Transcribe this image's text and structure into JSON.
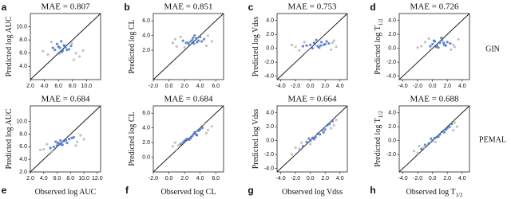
{
  "row_labels": [
    "GIN",
    "PEMAL"
  ],
  "chart_data": [
    {
      "type": "scatter",
      "panel_label": "a",
      "title": "MAE = 0.807",
      "y_label": "Predicted log AUC",
      "xlim": [
        2,
        12
      ],
      "ylim": [
        2,
        12
      ],
      "xticks": [
        {
          "value": 2,
          "label": "2.0"
        },
        {
          "value": 4,
          "label": "4.0"
        },
        {
          "value": 6,
          "label": "6.0"
        },
        {
          "value": 8,
          "label": "8.0"
        },
        {
          "value": 10,
          "label": "10.0"
        }
      ],
      "yticks": [
        {
          "value": 4,
          "label": "4.0"
        },
        {
          "value": 6,
          "label": "6.0"
        },
        {
          "value": 8,
          "label": "8.0"
        },
        {
          "value": 10,
          "label": "10.0"
        }
      ],
      "series": [
        {
          "color": "#4a74c9",
          "x": [
            5.5,
            6,
            6.2,
            6.5,
            6.8,
            7,
            7.2,
            5.8,
            6.4,
            7.5,
            6.1,
            6.9,
            5.2,
            7.8,
            6.6
          ],
          "values": [
            6.5,
            7,
            6.8,
            6.2,
            7.2,
            6.9,
            6.5,
            7.4,
            7.8,
            6.6,
            6,
            7,
            6.8,
            7.1,
            6.4
          ]
        },
        {
          "color": "#b8b8b8",
          "x": [
            4.5,
            8.5,
            9,
            7.9,
            3.8,
            8.2,
            5,
            9.5
          ],
          "values": [
            5.8,
            6,
            5.5,
            7.5,
            6.3,
            5,
            7.7,
            6.4
          ]
        }
      ]
    },
    {
      "type": "scatter",
      "panel_label": "b",
      "title": "MAE = 0.851",
      "y_label": "Predicted log CL",
      "xlim": [
        -2,
        7
      ],
      "ylim": [
        -2,
        7
      ],
      "xticks": [
        {
          "value": -2,
          "label": "-2.0"
        },
        {
          "value": 0,
          "label": "0.0"
        },
        {
          "value": 2,
          "label": "2.0"
        },
        {
          "value": 4,
          "label": "4.0"
        },
        {
          "value": 6,
          "label": "6.0"
        }
      ],
      "yticks": [
        {
          "value": 2,
          "label": "2.0"
        },
        {
          "value": 4,
          "label": "4.0"
        },
        {
          "value": 6,
          "label": "6.0"
        }
      ],
      "series": [
        {
          "color": "#4a74c9",
          "x": [
            2.5,
            3,
            3.2,
            3.5,
            2.8,
            3.8,
            4,
            2.2,
            3.3,
            4.5,
            2.6,
            3.6,
            1.8,
            3.1,
            4.2
          ],
          "values": [
            3,
            3.4,
            2.9,
            3.6,
            3.2,
            3.3,
            3.8,
            3,
            4,
            3.5,
            2.7,
            3.1,
            3.3,
            3.7,
            3.2
          ]
        },
        {
          "color": "#b8b8b8",
          "x": [
            1,
            0.5,
            5.5,
            4.8,
            1.5,
            2,
            5,
            0.8
          ],
          "values": [
            2.5,
            3,
            3.2,
            2.6,
            3.8,
            2.4,
            4,
            3.5
          ]
        }
      ]
    },
    {
      "type": "scatter",
      "panel_label": "c",
      "title": "MAE = 0.753",
      "y_label": "Predicted log Vdss",
      "xlim": [
        -4.5,
        5
      ],
      "ylim": [
        -4.5,
        5
      ],
      "xticks": [
        {
          "value": -4,
          "label": "-4.0"
        },
        {
          "value": -2,
          "label": "-2.0"
        },
        {
          "value": 0,
          "label": "0.0"
        },
        {
          "value": 2,
          "label": "2.0"
        },
        {
          "value": 4,
          "label": "4.0"
        }
      ],
      "yticks": [
        {
          "value": -4,
          "label": "-4.0"
        },
        {
          "value": -2,
          "label": "-2.0"
        },
        {
          "value": 0,
          "label": "0.0"
        },
        {
          "value": 2,
          "label": "2.0"
        },
        {
          "value": 4,
          "label": "4.0"
        }
      ],
      "series": [
        {
          "color": "#4a74c9",
          "x": [
            0,
            0.5,
            1,
            1.5,
            2,
            -0.5,
            0.8,
            1.2,
            2.5,
            0.3,
            1.8,
            -1,
            2.2,
            0.6,
            1.4
          ],
          "values": [
            0.5,
            0.8,
            0.3,
            0.9,
            0.6,
            0.4,
            1.2,
            0.1,
            0.7,
            0,
            0.5,
            0.3,
            1,
            0.6,
            0.4
          ]
        },
        {
          "color": "#b8b8b8",
          "x": [
            -2,
            -1.5,
            3,
            3.5,
            -2.5,
            2.8,
            -0.8,
            3.2
          ],
          "values": [
            0.2,
            -0.3,
            0.8,
            0.2,
            0.5,
            -0.2,
            0.9,
            1.1
          ]
        }
      ]
    },
    {
      "type": "scatter",
      "panel_label": "d",
      "title": "MAE = 0.726",
      "y_label": "Predicted log T",
      "y_label_sub": "1/2",
      "xlim": [
        -4.5,
        5
      ],
      "ylim": [
        -4.5,
        5
      ],
      "xticks": [
        {
          "value": -4,
          "label": "-4.0"
        },
        {
          "value": -2,
          "label": "-2.0"
        },
        {
          "value": 0,
          "label": "0.0"
        },
        {
          "value": 2,
          "label": "2.0"
        },
        {
          "value": 4,
          "label": "4.0"
        }
      ],
      "yticks": [
        {
          "value": -4,
          "label": "-4.0"
        },
        {
          "value": -2,
          "label": "-2.0"
        },
        {
          "value": 0,
          "label": "0.0"
        },
        {
          "value": 2,
          "label": "2.0"
        },
        {
          "value": 4,
          "label": "4.0"
        }
      ],
      "series": [
        {
          "color": "#4a74c9",
          "x": [
            0,
            0.3,
            0.6,
            1,
            1.3,
            1.6,
            2,
            0.8,
            -0.3,
            1.2,
            2.4,
            0.5,
            1.8,
            0.2,
            1.5
          ],
          "values": [
            0.6,
            1,
            0.4,
            0.8,
            1.2,
            0.5,
            0.9,
            0.1,
            0.3,
            1.5,
            0.7,
            0.2,
            0.4,
            1.1,
            0.8
          ]
        },
        {
          "color": "#b8b8b8",
          "x": [
            -1.5,
            -1,
            2.8,
            3.5,
            -2,
            3,
            -0.5,
            2.5
          ],
          "values": [
            0.3,
            0.9,
            0.5,
            1.3,
            0.1,
            0.2,
            1.4,
            -0.2
          ]
        }
      ]
    },
    {
      "type": "scatter",
      "panel_label": "e",
      "title": "MAE = 0.684",
      "y_label": "Predicted log AUC",
      "x_label": "Observed log AUC",
      "xlim": [
        2,
        12.5
      ],
      "ylim": [
        2,
        12.5
      ],
      "xticks": [
        {
          "value": 2,
          "label": "2.0"
        },
        {
          "value": 4,
          "label": "4.0"
        },
        {
          "value": 6,
          "label": "6.0"
        },
        {
          "value": 8,
          "label": "8.0"
        },
        {
          "value": 10,
          "label": "10.0"
        },
        {
          "value": 12,
          "label": "12.0"
        }
      ],
      "yticks": [
        {
          "value": 2,
          "label": "2.0"
        },
        {
          "value": 4,
          "label": "4.0"
        },
        {
          "value": 6,
          "label": "6.0"
        },
        {
          "value": 8,
          "label": "8.0"
        },
        {
          "value": 10,
          "label": "10.0"
        }
      ],
      "series": [
        {
          "color": "#4a74c9",
          "x": [
            5,
            5.5,
            6,
            6.3,
            6.6,
            7,
            7.3,
            7.8,
            8.2,
            6.1,
            6.8,
            5.8,
            7.5,
            8.5,
            6.5
          ],
          "values": [
            5.8,
            6,
            6.2,
            6.5,
            6.4,
            6.9,
            7,
            7.2,
            7.4,
            6.6,
            6.3,
            6.8,
            6.6,
            7.5,
            7
          ]
        },
        {
          "color": "#b8b8b8",
          "x": [
            4,
            4.5,
            9,
            9.5,
            3.5,
            8.8,
            10,
            5.2
          ],
          "values": [
            5.6,
            6.4,
            6.8,
            7.8,
            5.5,
            6.2,
            7.2,
            5.2
          ]
        }
      ]
    },
    {
      "type": "scatter",
      "panel_label": "f",
      "title": "MAE = 0.684",
      "y_label": "Predicted log CL",
      "x_label": "Observed log CL",
      "xlim": [
        -2,
        7
      ],
      "ylim": [
        -2,
        7
      ],
      "xticks": [
        {
          "value": -2,
          "label": "-2.0"
        },
        {
          "value": 0,
          "label": "0.0"
        },
        {
          "value": 2,
          "label": "2.0"
        },
        {
          "value": 4,
          "label": "4.0"
        },
        {
          "value": 6,
          "label": "6.0"
        }
      ],
      "yticks": [
        {
          "value": 0,
          "label": "0.0"
        },
        {
          "value": 2,
          "label": "2.0"
        },
        {
          "value": 4,
          "label": "4.0"
        },
        {
          "value": 6,
          "label": "6.0"
        }
      ],
      "series": [
        {
          "color": "#4a74c9",
          "x": [
            1.5,
            2,
            2.3,
            2.6,
            3,
            3.2,
            3.5,
            3.8,
            4,
            2.8,
            3.3,
            4.3,
            2.1,
            3.6,
            1.8
          ],
          "values": [
            1.8,
            2.2,
            2.5,
            2.4,
            2.9,
            3.2,
            3.1,
            3.6,
            3.8,
            2.6,
            3.4,
            4,
            2.3,
            3,
            2
          ]
        },
        {
          "color": "#b8b8b8",
          "x": [
            0.5,
            1,
            5,
            5.5,
            0.8,
            4.8,
            1.2,
            4.5
          ],
          "values": [
            1.5,
            1,
            3.7,
            4.2,
            2,
            3.3,
            1.6,
            4.5
          ]
        }
      ]
    },
    {
      "type": "scatter",
      "panel_label": "g",
      "title": "MAE = 0.664",
      "y_label": "Predicted log Vdss",
      "x_label": "Observed log Vdss",
      "xlim": [
        -4.5,
        5
      ],
      "ylim": [
        -4.5,
        5
      ],
      "xticks": [
        {
          "value": -4,
          "label": "-4.0"
        },
        {
          "value": -2,
          "label": "-2.0"
        },
        {
          "value": 0,
          "label": "0.0"
        },
        {
          "value": 2,
          "label": "2.0"
        },
        {
          "value": 4,
          "label": "4.0"
        }
      ],
      "yticks": [
        {
          "value": -4,
          "label": "-4.0"
        },
        {
          "value": -2,
          "label": "-2.0"
        },
        {
          "value": 0,
          "label": "0.0"
        },
        {
          "value": 2,
          "label": "2.0"
        },
        {
          "value": 4,
          "label": "4.0"
        }
      ],
      "series": [
        {
          "color": "#4a74c9",
          "x": [
            -1,
            -0.5,
            0,
            0.3,
            0.7,
            1,
            1.3,
            1.6,
            2,
            2.3,
            2.6,
            0.5,
            1.8,
            -0.2,
            3
          ],
          "values": [
            -0.8,
            -0.2,
            0,
            0.4,
            0.5,
            1,
            0.9,
            1.5,
            1.6,
            2.2,
            2.4,
            0.2,
            1.2,
            0.3,
            2.8
          ]
        },
        {
          "color": "#b8b8b8",
          "x": [
            -2.5,
            -2,
            -1.5,
            3.5,
            3.2,
            -1.2,
            2.8,
            0
          ],
          "values": [
            -2,
            -1,
            -1.2,
            3,
            2.2,
            -0.3,
            1.8,
            -0.5
          ]
        }
      ]
    },
    {
      "type": "scatter",
      "panel_label": "h",
      "title": "MAE = 0.688",
      "y_label": "Predicted log T",
      "y_label_sub": "1/2",
      "x_label": "Observed log T",
      "x_label_sub": "1/2",
      "xlim": [
        -4.5,
        5
      ],
      "ylim": [
        -4.5,
        5
      ],
      "xticks": [
        {
          "value": -4,
          "label": "-4.0"
        },
        {
          "value": -2,
          "label": "-2.0"
        },
        {
          "value": 0,
          "label": "0.0"
        },
        {
          "value": 2,
          "label": "2.0"
        },
        {
          "value": 4,
          "label": "4.0"
        }
      ],
      "yticks": [
        {
          "value": -2,
          "label": "-2.0"
        },
        {
          "value": 0,
          "label": "0.0"
        },
        {
          "value": 2,
          "label": "2.0"
        },
        {
          "value": 4,
          "label": "4.0"
        }
      ],
      "series": [
        {
          "color": "#4a74c9",
          "x": [
            -1.5,
            -1,
            -0.5,
            0,
            0.3,
            0.6,
            1,
            1.3,
            1.6,
            2,
            2.3,
            0.8,
            -0.2,
            1.8,
            2.6
          ],
          "values": [
            -1.2,
            -0.6,
            -0.4,
            0,
            0.4,
            0.5,
            0.9,
            1.3,
            1.2,
            1.8,
            2,
            0.6,
            0.3,
            1.6,
            2.4
          ]
        },
        {
          "color": "#b8b8b8",
          "x": [
            -2.5,
            -2,
            -1.8,
            3,
            3.3,
            -1.2,
            2.8,
            0.4
          ],
          "values": [
            -1.5,
            -1.8,
            -0.8,
            2.6,
            2,
            -1,
            1.5,
            -0.2
          ]
        }
      ]
    }
  ]
}
